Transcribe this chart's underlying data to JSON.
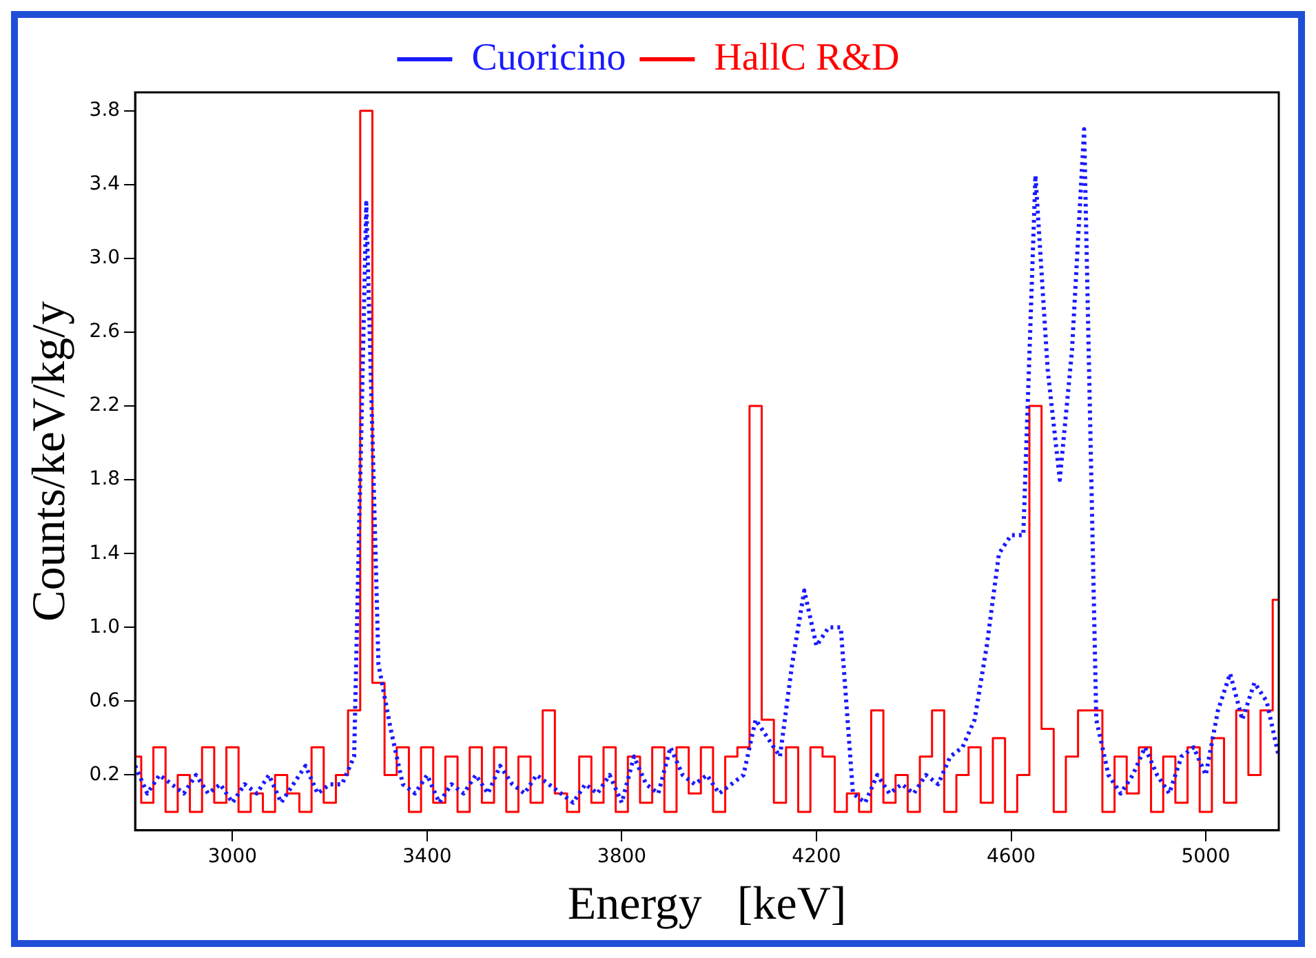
{
  "chart_data": {
    "type": "line",
    "xlabel": "Energy   [keV]",
    "ylabel": "Counts/keV/kg/y",
    "x": [
      2800,
      2825,
      2850,
      2875,
      2900,
      2925,
      2950,
      2975,
      3000,
      3025,
      3050,
      3075,
      3100,
      3125,
      3150,
      3175,
      3200,
      3225,
      3250,
      3275,
      3300,
      3325,
      3350,
      3375,
      3400,
      3425,
      3450,
      3475,
      3500,
      3525,
      3550,
      3575,
      3600,
      3625,
      3650,
      3675,
      3700,
      3725,
      3750,
      3775,
      3800,
      3825,
      3850,
      3875,
      3900,
      3925,
      3950,
      3975,
      4000,
      4025,
      4050,
      4075,
      4100,
      4125,
      4150,
      4175,
      4200,
      4225,
      4250,
      4275,
      4300,
      4325,
      4350,
      4375,
      4400,
      4425,
      4450,
      4475,
      4500,
      4525,
      4550,
      4575,
      4600,
      4625,
      4650,
      4675,
      4700,
      4725,
      4750,
      4775,
      4800,
      4825,
      4850,
      4875,
      4900,
      4925,
      4950,
      4975,
      5000,
      5025,
      5050,
      5075,
      5100,
      5125,
      5150
    ],
    "series": [
      {
        "name": "Cuoricino",
        "color": "#1a1aff",
        "type": "line",
        "line_style": "dotted",
        "values": [
          0.25,
          0.1,
          0.2,
          0.15,
          0.1,
          0.2,
          0.1,
          0.15,
          0.05,
          0.15,
          0.1,
          0.2,
          0.05,
          0.15,
          0.25,
          0.1,
          0.15,
          0.15,
          0.3,
          3.3,
          0.8,
          0.45,
          0.15,
          0.1,
          0.2,
          0.05,
          0.15,
          0.1,
          0.2,
          0.1,
          0.25,
          0.15,
          0.1,
          0.2,
          0.15,
          0.1,
          0.05,
          0.15,
          0.1,
          0.2,
          0.05,
          0.3,
          0.15,
          0.1,
          0.35,
          0.2,
          0.15,
          0.2,
          0.1,
          0.15,
          0.2,
          0.5,
          0.4,
          0.3,
          0.8,
          1.2,
          0.9,
          1.0,
          1.0,
          0.1,
          0.05,
          0.2,
          0.1,
          0.15,
          0.1,
          0.2,
          0.15,
          0.3,
          0.35,
          0.5,
          0.9,
          1.4,
          1.5,
          1.5,
          3.45,
          2.4,
          1.8,
          2.5,
          3.7,
          0.5,
          0.2,
          0.1,
          0.2,
          0.35,
          0.2,
          0.1,
          0.3,
          0.35,
          0.2,
          0.55,
          0.75,
          0.5,
          0.7,
          0.6,
          0.3
        ]
      },
      {
        "name": "HallC R&D",
        "color": "#ff0000",
        "type": "step",
        "line_style": "solid",
        "values": [
          0.3,
          0.05,
          0.35,
          0.0,
          0.2,
          0.0,
          0.35,
          0.05,
          0.35,
          0.0,
          0.1,
          0.0,
          0.2,
          0.1,
          0.0,
          0.35,
          0.05,
          0.2,
          0.55,
          3.8,
          0.7,
          0.2,
          0.35,
          0.0,
          0.35,
          0.05,
          0.3,
          0.0,
          0.35,
          0.05,
          0.35,
          0.0,
          0.3,
          0.05,
          0.55,
          0.1,
          0.0,
          0.3,
          0.05,
          0.35,
          0.0,
          0.3,
          0.05,
          0.35,
          0.0,
          0.35,
          0.1,
          0.35,
          0.0,
          0.3,
          0.35,
          2.2,
          0.5,
          0.05,
          0.35,
          0.0,
          0.35,
          0.3,
          0.0,
          0.1,
          0.0,
          0.55,
          0.05,
          0.2,
          0.0,
          0.3,
          0.55,
          0.0,
          0.2,
          0.35,
          0.05,
          0.4,
          0.0,
          0.2,
          2.2,
          0.45,
          0.0,
          0.3,
          0.55,
          0.55,
          0.0,
          0.3,
          0.1,
          0.35,
          0.0,
          0.3,
          0.05,
          0.35,
          0.0,
          0.4,
          0.05,
          0.55,
          0.2,
          0.55,
          1.15
        ]
      }
    ],
    "xlim": [
      2800,
      5150
    ],
    "xticks": [
      3000,
      3400,
      3800,
      4200,
      4600,
      5000
    ],
    "ylim": [
      -0.1,
      3.9
    ],
    "yticks": [
      0.2,
      0.6,
      {
        "value": 1.0,
        "label": "1.0"
      },
      1.4,
      1.8,
      2.2,
      2.6,
      {
        "value": 3.0,
        "label": "3.0"
      },
      3.4,
      3.8
    ],
    "grid": false,
    "legend": "top",
    "marker": "none"
  }
}
